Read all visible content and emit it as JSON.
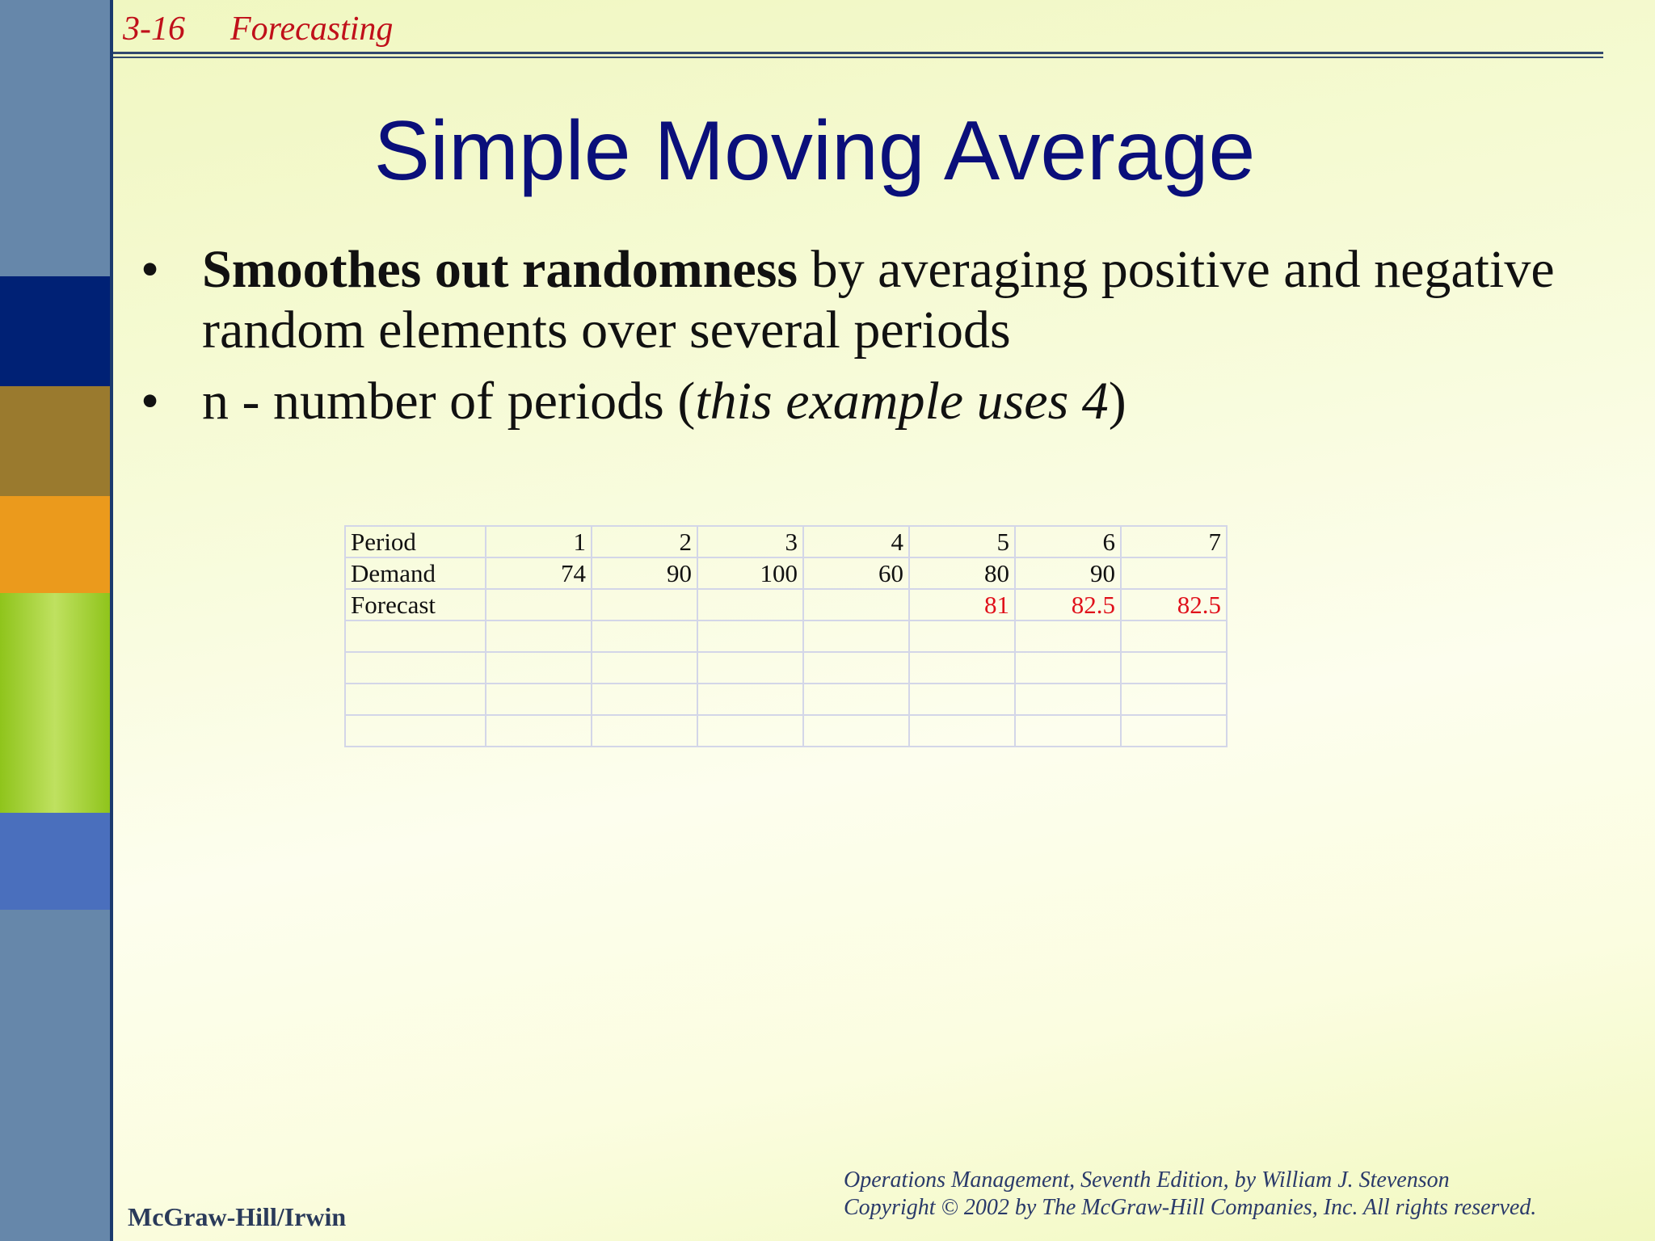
{
  "header": {
    "slide_number": "3-16",
    "section": "Forecasting"
  },
  "title": "Simple Moving Average",
  "bullets": [
    {
      "bold": "Smoothes out randomness",
      "rest": " by averaging positive and negative random elements over several periods"
    },
    {
      "pre": "n - number of periods (",
      "italic": "this example uses 4",
      "post": ")"
    }
  ],
  "table": {
    "period_label": "Period",
    "periods": [
      "1",
      "2",
      "3",
      "4",
      "5",
      "6",
      "7"
    ],
    "demand_label": "Demand",
    "demand": [
      "74",
      "90",
      "100",
      "60",
      "80",
      "90",
      ""
    ],
    "forecast_label": "Forecast",
    "forecast": [
      "",
      "",
      "",
      "",
      "81",
      "82.5",
      "82.5"
    ],
    "forecast_color": "#e0101a",
    "empty_rows": 4
  },
  "footer": {
    "publisher": "McGraw-Hill/Irwin",
    "line1": "Operations Management, Seventh Edition, by William J. Stevenson",
    "line2": "Copyright © 2002 by The McGraw-Hill Companies, Inc.  All rights reserved."
  },
  "colors": {
    "title": "#0a0f7a",
    "header": "#c0101a",
    "sidebar": "#6687aa",
    "sidebar_blocks": [
      "#002175",
      "#9a7a2e",
      "#eb9a1c",
      "#a6d12e",
      "#4a6fbd"
    ]
  }
}
